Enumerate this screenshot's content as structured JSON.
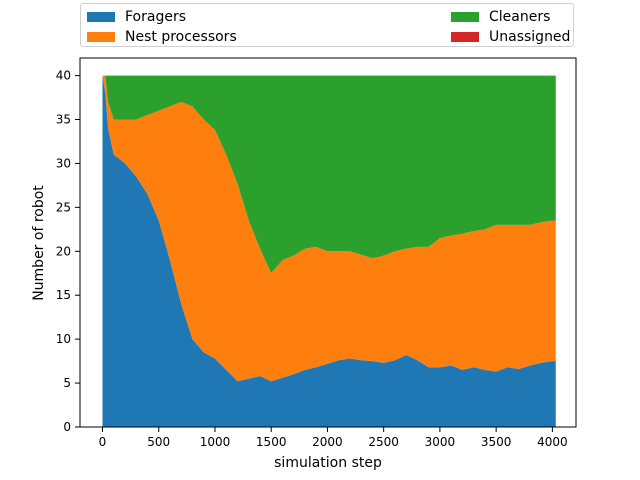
{
  "chart_data": {
    "type": "area",
    "stacked": true,
    "title": "",
    "xlabel": "simulation step",
    "ylabel": "Number of robot",
    "xlim": [
      -200,
      4210
    ],
    "ylim": [
      0,
      42
    ],
    "xticks": [
      0,
      500,
      1000,
      1500,
      2000,
      2500,
      3000,
      3500,
      4000
    ],
    "yticks": [
      0,
      5,
      10,
      15,
      20,
      25,
      30,
      35,
      40
    ],
    "grid": false,
    "legend_position": "top",
    "x": [
      0,
      25,
      50,
      100,
      150,
      200,
      300,
      400,
      500,
      600,
      700,
      800,
      900,
      1000,
      1100,
      1200,
      1300,
      1400,
      1500,
      1600,
      1700,
      1800,
      1900,
      2000,
      2100,
      2200,
      2300,
      2400,
      2500,
      2600,
      2700,
      2800,
      2900,
      3000,
      3100,
      3200,
      3300,
      3400,
      3500,
      3600,
      3700,
      3800,
      3900,
      4000,
      4030
    ],
    "series": [
      {
        "name": "Foragers",
        "color": "#1f77b4",
        "values": [
          40,
          38,
          34,
          31,
          30.5,
          30,
          28.5,
          26.5,
          23.5,
          19,
          14,
          10,
          8.5,
          7.8,
          6.5,
          5.2,
          5.5,
          5.8,
          5.2,
          5.6,
          6.0,
          6.5,
          6.8,
          7.2,
          7.6,
          7.8,
          7.6,
          7.5,
          7.3,
          7.6,
          8.2,
          7.6,
          6.8,
          6.8,
          7.0,
          6.5,
          6.8,
          6.5,
          6.3,
          6.8,
          6.6,
          7.0,
          7.3,
          7.5,
          7.5
        ]
      },
      {
        "name": "Nest processors",
        "color": "#ff7f0e",
        "values": [
          0,
          2,
          3,
          4,
          4.5,
          5,
          6.5,
          9,
          12.5,
          17.5,
          23,
          26.5,
          26.5,
          26,
          24.5,
          22.5,
          18,
          14.5,
          12.3,
          13.4,
          13.5,
          13.8,
          13.7,
          12.8,
          12.4,
          12.2,
          12.0,
          11.7,
          12.2,
          12.4,
          12.1,
          12.9,
          13.7,
          14.7,
          14.8,
          15.5,
          15.5,
          16.0,
          16.7,
          16.2,
          16.4,
          16.0,
          16.0,
          16.0,
          16.0
        ]
      },
      {
        "name": "Cleaners",
        "color": "#2ca02c",
        "values": [
          0,
          0,
          3,
          5,
          5,
          5,
          5,
          4.5,
          4,
          3.5,
          3,
          3.5,
          5,
          6.2,
          9,
          12.3,
          16.5,
          19.7,
          22.5,
          21.0,
          20.5,
          19.7,
          19.5,
          20.0,
          20.0,
          20.0,
          20.4,
          20.8,
          20.5,
          20.0,
          19.7,
          19.5,
          19.5,
          18.5,
          18.2,
          18.0,
          17.7,
          17.5,
          17.0,
          17.0,
          17.0,
          17.0,
          16.7,
          16.5,
          16.5
        ]
      },
      {
        "name": "Unassigned",
        "color": "#d62728",
        "values": [
          0,
          0,
          0,
          0,
          0,
          0,
          0,
          0,
          0,
          0,
          0,
          0,
          0,
          0,
          0,
          0,
          0,
          0,
          0,
          0,
          0,
          0,
          0,
          0,
          0,
          0,
          0,
          0,
          0,
          0,
          0,
          0,
          0,
          0,
          0,
          0,
          0,
          0,
          0,
          0,
          0,
          0,
          0,
          0,
          0
        ]
      }
    ]
  }
}
